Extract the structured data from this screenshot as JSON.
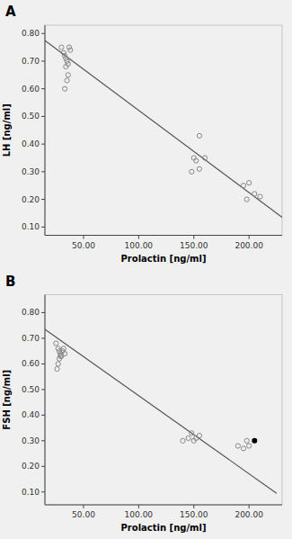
{
  "chart_data": [
    {
      "type": "scatter",
      "title": "A",
      "x_label": "Prolactin [ng/ml]",
      "y_label": "LH [ng/ml]",
      "series": [
        {
          "type": "scatter",
          "color": "#888888",
          "marker": "circle-open",
          "x": [
            30,
            32,
            33,
            34,
            35,
            36,
            37,
            38,
            35,
            36,
            33,
            34,
            150,
            152,
            155,
            148,
            155,
            160,
            195,
            198,
            200,
            205,
            210
          ],
          "values": [
            0.75,
            0.73,
            0.72,
            0.71,
            0.7,
            0.69,
            0.75,
            0.74,
            0.63,
            0.65,
            0.6,
            0.68,
            0.35,
            0.34,
            0.43,
            0.3,
            0.31,
            0.35,
            0.25,
            0.2,
            0.26,
            0.22,
            0.21
          ],
          "colors": [
            "#888888",
            "#888888",
            "#888888",
            "#888888",
            "#888888",
            "#888888",
            "#888888",
            "#888888",
            "#888888",
            "#888888",
            "#888888",
            "#888888",
            "#888888",
            "#888888",
            "#888888",
            "#888888",
            "#888888",
            "#888888",
            "#888888",
            "#888888",
            "#888888",
            "#888888",
            "#888888"
          ]
        },
        {
          "type": "line",
          "color": "#555555",
          "x": [
            15,
            230
          ],
          "values": [
            0.775,
            0.135
          ]
        }
      ],
      "xlim": [
        15,
        230
      ],
      "ylim": [
        0.07,
        0.83
      ],
      "xticks": [
        {
          "value": 50.0,
          "label": "50.00"
        },
        {
          "value": 100.0,
          "label": "100.00"
        },
        {
          "value": 150.0,
          "label": "150.00"
        },
        {
          "value": 200.0,
          "label": "200.00"
        }
      ],
      "yticks": [
        {
          "value": 0.1,
          "label": "0.10"
        },
        {
          "value": 0.2,
          "label": "0.20"
        },
        {
          "value": 0.3,
          "label": "0.30"
        },
        {
          "value": 0.4,
          "label": "0.40"
        },
        {
          "value": 0.5,
          "label": "0.50"
        },
        {
          "value": 0.6,
          "label": "0.60"
        },
        {
          "value": 0.7,
          "label": "0.70"
        },
        {
          "value": 0.8,
          "label": "0.80"
        }
      ]
    },
    {
      "type": "scatter",
      "title": "B",
      "x_label": "Prolactin [ng/ml]",
      "y_label": "FSH [ng/ml]",
      "series": [
        {
          "type": "scatter",
          "color": "#888888",
          "marker": "circle-open",
          "x": [
            25,
            27,
            28,
            29,
            30,
            31,
            32,
            33,
            27,
            28,
            26,
            29,
            140,
            145,
            148,
            150,
            152,
            155,
            190,
            195,
            198,
            200,
            205
          ],
          "values": [
            0.68,
            0.66,
            0.65,
            0.64,
            0.63,
            0.65,
            0.66,
            0.64,
            0.6,
            0.62,
            0.58,
            0.63,
            0.3,
            0.31,
            0.33,
            0.3,
            0.31,
            0.32,
            0.28,
            0.27,
            0.3,
            0.28,
            0.3
          ],
          "colors": [
            "#888888",
            "#888888",
            "#888888",
            "#888888",
            "#888888",
            "#888888",
            "#888888",
            "#888888",
            "#888888",
            "#888888",
            "#888888",
            "#888888",
            "#888888",
            "#888888",
            "#888888",
            "#888888",
            "#888888",
            "#888888",
            "#888888",
            "#888888",
            "#888888",
            "#888888",
            "#000000"
          ]
        },
        {
          "type": "line",
          "color": "#555555",
          "x": [
            15,
            225
          ],
          "values": [
            0.735,
            0.095
          ]
        }
      ],
      "xlim": [
        15,
        230
      ],
      "ylim": [
        0.05,
        0.87
      ],
      "xticks": [
        {
          "value": 50.0,
          "label": "50.00"
        },
        {
          "value": 100.0,
          "label": "100.00"
        },
        {
          "value": 150.0,
          "label": "150.00"
        },
        {
          "value": 200.0,
          "label": "200.00"
        }
      ],
      "yticks": [
        {
          "value": 0.1,
          "label": "0.10"
        },
        {
          "value": 0.2,
          "label": "0.20"
        },
        {
          "value": 0.3,
          "label": "0.30"
        },
        {
          "value": 0.4,
          "label": "0.40"
        },
        {
          "value": 0.5,
          "label": "0.50"
        },
        {
          "value": 0.6,
          "label": "0.60"
        },
        {
          "value": 0.7,
          "label": "0.70"
        },
        {
          "value": 0.8,
          "label": "0.80"
        }
      ]
    }
  ]
}
